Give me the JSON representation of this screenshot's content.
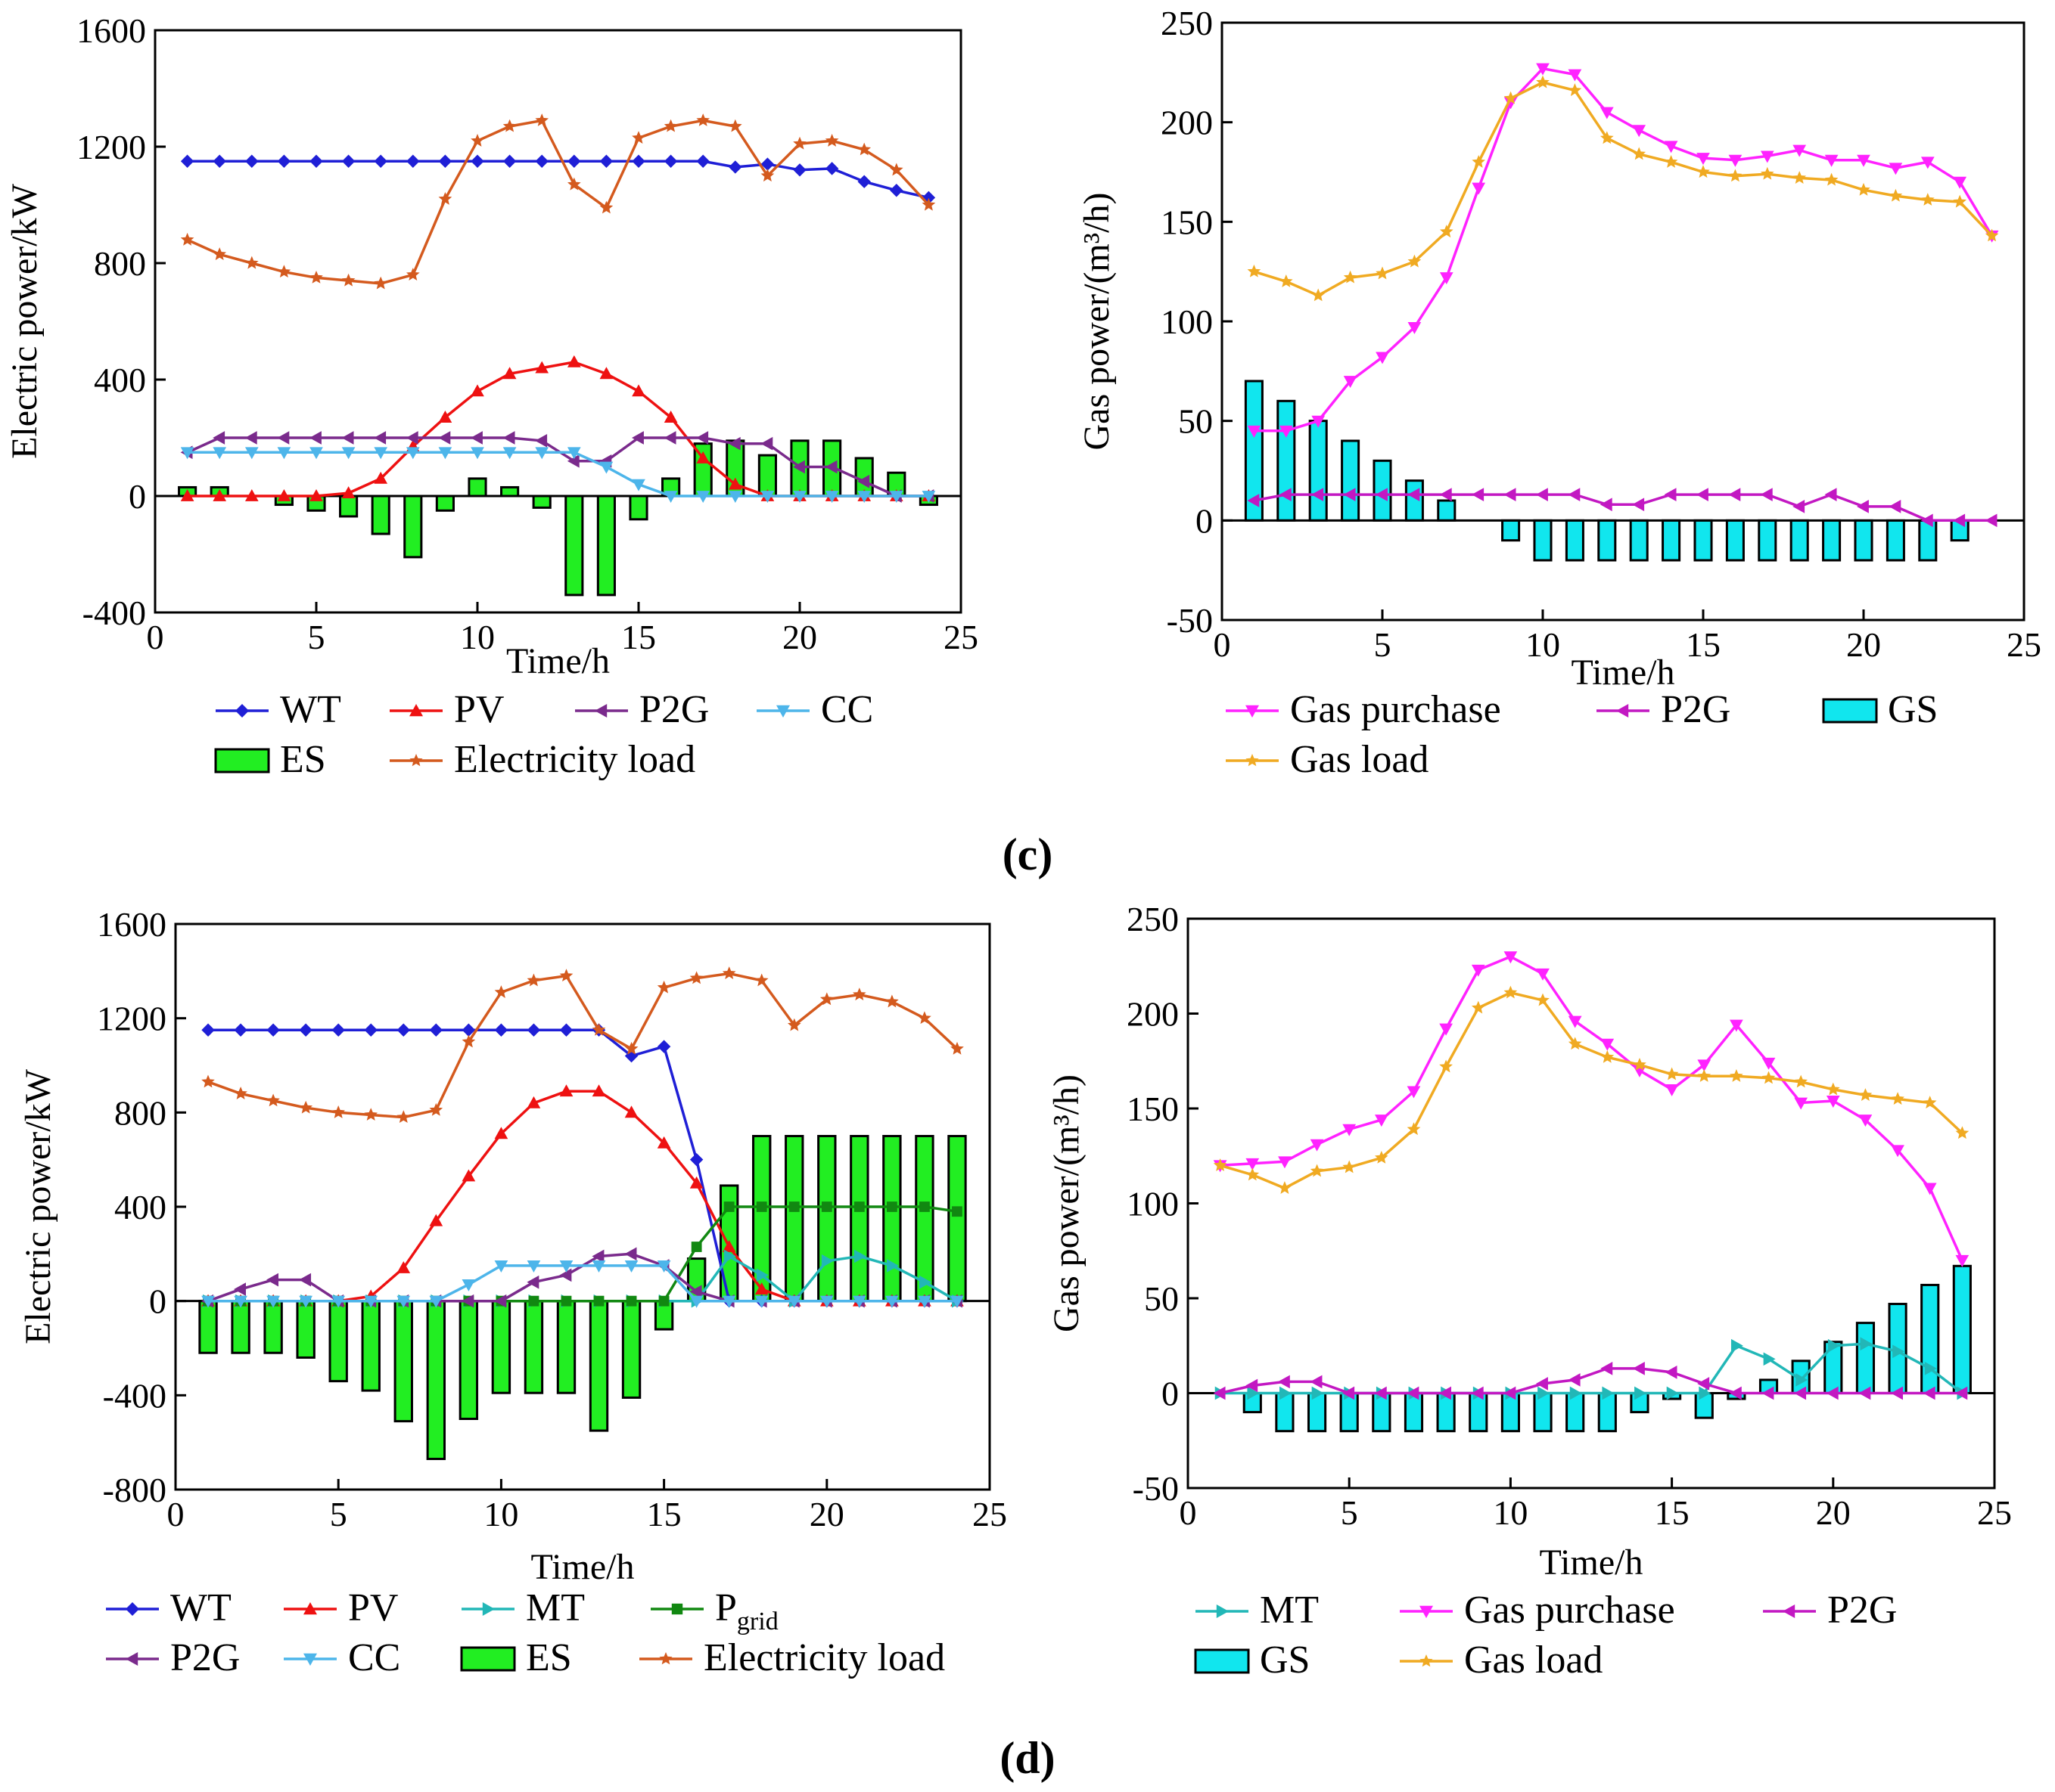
{
  "figure": {
    "panel_c_label": "(c)",
    "panel_d_label": "(d)"
  },
  "colors": {
    "WT": "#1f1fd6",
    "PV": "#ee1111",
    "P2G_elec": "#7a2a8c",
    "CC": "#4db5ea",
    "ES": "#22ee22",
    "Electricity_load": "#d45a1e",
    "Gas_purchase": "#ff22ff",
    "P2G_gas": "#c218c2",
    "GS": "#11e6ee",
    "Gas_load": "#f0aa22",
    "MT": "#22b7b7",
    "Pgrid": "#118811"
  },
  "chart_data": [
    {
      "id": "c-electric",
      "type": "line+bar",
      "xlabel": "Time/h",
      "ylabel": "Electric power/kW",
      "xlim": [
        0,
        25
      ],
      "ylim": [
        -400,
        1600
      ],
      "xticks": [
        "0",
        "5",
        "10",
        "15",
        "20",
        "25"
      ],
      "yticks": [
        "-400",
        "0",
        "400",
        "800",
        "1200",
        "1600"
      ],
      "x": [
        1,
        2,
        3,
        4,
        5,
        6,
        7,
        8,
        9,
        10,
        11,
        12,
        13,
        14,
        15,
        16,
        17,
        18,
        19,
        20,
        21,
        22,
        23,
        24
      ],
      "series": [
        {
          "name": "WT",
          "kind": "line",
          "color": "#1f1fd6",
          "marker": "diamond",
          "values": [
            1150,
            1150,
            1150,
            1150,
            1150,
            1150,
            1150,
            1150,
            1150,
            1150,
            1150,
            1150,
            1150,
            1150,
            1150,
            1150,
            1150,
            1130,
            1140,
            1120,
            1125,
            1080,
            1050,
            1025
          ]
        },
        {
          "name": "PV",
          "kind": "line",
          "color": "#ee1111",
          "marker": "triangle-up",
          "values": [
            0,
            0,
            0,
            0,
            0,
            10,
            60,
            170,
            270,
            360,
            420,
            440,
            460,
            420,
            360,
            270,
            130,
            40,
            0,
            0,
            0,
            0,
            0,
            0
          ]
        },
        {
          "name": "P2G",
          "kind": "line",
          "color": "#7a2a8c",
          "marker": "triangle-left",
          "values": [
            150,
            200,
            200,
            200,
            200,
            200,
            200,
            200,
            200,
            200,
            200,
            190,
            120,
            120,
            200,
            200,
            200,
            180,
            180,
            100,
            100,
            50,
            0,
            0
          ]
        },
        {
          "name": "CC",
          "kind": "line",
          "color": "#4db5ea",
          "marker": "triangle-down",
          "values": [
            150,
            150,
            150,
            150,
            150,
            150,
            150,
            150,
            150,
            150,
            150,
            150,
            150,
            100,
            40,
            0,
            0,
            0,
            0,
            0,
            0,
            0,
            0,
            0
          ]
        },
        {
          "name": "ES",
          "kind": "bar",
          "color": "#22ee22",
          "values": [
            30,
            30,
            0,
            -30,
            -50,
            -70,
            -130,
            -210,
            -50,
            60,
            30,
            -40,
            -340,
            -340,
            -80,
            60,
            180,
            190,
            140,
            190,
            190,
            130,
            80,
            -30
          ]
        },
        {
          "name": "Electricity load",
          "kind": "line",
          "color": "#d45a1e",
          "marker": "star",
          "values": [
            880,
            830,
            800,
            770,
            750,
            740,
            730,
            760,
            1020,
            1220,
            1270,
            1290,
            1070,
            990,
            1230,
            1270,
            1290,
            1270,
            1100,
            1210,
            1220,
            1190,
            1120,
            1000
          ]
        }
      ],
      "legend": [
        [
          "WT",
          "PV",
          "P2G",
          "CC"
        ],
        [
          "ES",
          "Electricity load"
        ]
      ]
    },
    {
      "id": "c-gas",
      "type": "line+bar",
      "xlabel": "Time/h",
      "ylabel": "Gas power/(m³/h)",
      "xlim": [
        0,
        25
      ],
      "ylim": [
        -50,
        250
      ],
      "xticks": [
        "0",
        "5",
        "10",
        "15",
        "20",
        "25"
      ],
      "yticks": [
        "-50",
        "0",
        "50",
        "100",
        "150",
        "200",
        "250"
      ],
      "x": [
        1,
        2,
        3,
        4,
        5,
        6,
        7,
        8,
        9,
        10,
        11,
        12,
        13,
        14,
        15,
        16,
        17,
        18,
        19,
        20,
        21,
        22,
        23,
        24
      ],
      "series": [
        {
          "name": "Gas purchase",
          "kind": "line",
          "color": "#ff22ff",
          "marker": "triangle-down",
          "values": [
            45,
            45,
            50,
            70,
            82,
            97,
            122,
            167,
            210,
            227,
            224,
            205,
            196,
            188,
            182,
            181,
            183,
            186,
            181,
            181,
            177,
            180,
            170,
            143
          ]
        },
        {
          "name": "P2G",
          "kind": "line",
          "color": "#c218c2",
          "marker": "triangle-left",
          "values": [
            10,
            13,
            13,
            13,
            13,
            13,
            13,
            13,
            13,
            13,
            13,
            8,
            8,
            13,
            13,
            13,
            13,
            7,
            13,
            7,
            7,
            0,
            0,
            0
          ]
        },
        {
          "name": "GS",
          "kind": "bar",
          "color": "#11e6ee",
          "values": [
            70,
            60,
            50,
            40,
            30,
            20,
            10,
            0,
            -10,
            -20,
            -20,
            -20,
            -20,
            -20,
            -20,
            -20,
            -20,
            -20,
            -20,
            -20,
            -20,
            -20,
            -10,
            0
          ]
        },
        {
          "name": "Gas load",
          "kind": "line",
          "color": "#f0aa22",
          "marker": "star",
          "values": [
            125,
            120,
            113,
            122,
            124,
            130,
            145,
            180,
            212,
            220,
            216,
            192,
            184,
            180,
            175,
            173,
            174,
            172,
            171,
            166,
            163,
            161,
            160,
            143
          ]
        }
      ],
      "legend": [
        [
          "Gas purchase",
          "P2G",
          "GS"
        ],
        [
          "Gas load"
        ]
      ]
    },
    {
      "id": "d-electric",
      "type": "line+bar",
      "xlabel": "Time/h",
      "ylabel": "Electric power/kW",
      "xlim": [
        0,
        25
      ],
      "ylim": [
        -800,
        1600
      ],
      "xticks": [
        "0",
        "5",
        "10",
        "15",
        "20",
        "25"
      ],
      "yticks": [
        "-800",
        "-400",
        "0",
        "400",
        "800",
        "1200",
        "1600"
      ],
      "x": [
        1,
        2,
        3,
        4,
        5,
        6,
        7,
        8,
        9,
        10,
        11,
        12,
        13,
        14,
        15,
        16,
        17,
        18,
        19,
        20,
        21,
        22,
        23,
        24
      ],
      "series": [
        {
          "name": "WT",
          "kind": "line",
          "color": "#1f1fd6",
          "marker": "diamond",
          "values": [
            1150,
            1150,
            1150,
            1150,
            1150,
            1150,
            1150,
            1150,
            1150,
            1150,
            1150,
            1150,
            1150,
            1040,
            1080,
            600,
            0,
            0,
            0,
            0,
            0,
            0,
            0,
            0
          ]
        },
        {
          "name": "PV",
          "kind": "line",
          "color": "#ee1111",
          "marker": "triangle-up",
          "values": [
            0,
            0,
            0,
            0,
            0,
            20,
            140,
            340,
            530,
            710,
            840,
            890,
            890,
            800,
            670,
            500,
            230,
            50,
            0,
            0,
            0,
            0,
            0,
            0
          ]
        },
        {
          "name": "MT",
          "kind": "line",
          "color": "#22b7b7",
          "marker": "triangle-right",
          "values": [
            0,
            0,
            0,
            0,
            0,
            0,
            0,
            0,
            0,
            0,
            0,
            0,
            0,
            0,
            0,
            0,
            190,
            110,
            0,
            170,
            190,
            150,
            80,
            0
          ]
        },
        {
          "name": "Pgrid",
          "kind": "line",
          "color": "#118811",
          "marker": "square",
          "values": [
            0,
            0,
            0,
            0,
            0,
            0,
            0,
            0,
            0,
            0,
            0,
            0,
            0,
            0,
            0,
            230,
            400,
            400,
            400,
            400,
            400,
            400,
            400,
            380
          ]
        },
        {
          "name": "P2G",
          "kind": "line",
          "color": "#7a2a8c",
          "marker": "triangle-left",
          "values": [
            0,
            50,
            90,
            90,
            0,
            0,
            0,
            0,
            0,
            0,
            80,
            110,
            190,
            200,
            150,
            40,
            0,
            0,
            0,
            0,
            0,
            0,
            0,
            0
          ]
        },
        {
          "name": "CC",
          "kind": "line",
          "color": "#4db5ea",
          "marker": "triangle-down",
          "values": [
            0,
            0,
            0,
            0,
            0,
            0,
            0,
            0,
            70,
            150,
            150,
            150,
            150,
            150,
            150,
            0,
            0,
            0,
            0,
            0,
            0,
            0,
            0,
            0
          ]
        },
        {
          "name": "ES",
          "kind": "bar",
          "color": "#22ee22",
          "values": [
            -220,
            -220,
            -220,
            -240,
            -340,
            -380,
            -510,
            -670,
            -500,
            -390,
            -390,
            -390,
            -550,
            -410,
            -120,
            180,
            490,
            700,
            700,
            700,
            700,
            700,
            700,
            700
          ]
        },
        {
          "name": "Electricity load",
          "kind": "line",
          "color": "#d45a1e",
          "marker": "star",
          "values": [
            930,
            880,
            850,
            820,
            800,
            790,
            780,
            810,
            1100,
            1310,
            1360,
            1380,
            1150,
            1070,
            1330,
            1370,
            1390,
            1360,
            1170,
            1280,
            1300,
            1270,
            1200,
            1070
          ]
        }
      ],
      "legend": [
        [
          "WT",
          "PV",
          "MT",
          "Pgrid"
        ],
        [
          "P2G",
          "CC",
          "ES",
          "Electricity load"
        ]
      ]
    },
    {
      "id": "d-gas",
      "type": "line+bar",
      "xlabel": "Time/h",
      "ylabel": "Gas power/(m³/h)",
      "xlim": [
        0,
        25
      ],
      "ylim": [
        -50,
        250
      ],
      "xticks": [
        "0",
        "5",
        "10",
        "15",
        "20",
        "25"
      ],
      "yticks": [
        "-50",
        "0",
        "50",
        "100",
        "150",
        "200",
        "250"
      ],
      "x": [
        1,
        2,
        3,
        4,
        5,
        6,
        7,
        8,
        9,
        10,
        11,
        12,
        13,
        14,
        15,
        16,
        17,
        18,
        19,
        20,
        21,
        22,
        23,
        24
      ],
      "series": [
        {
          "name": "MT",
          "kind": "line",
          "color": "#22b7b7",
          "marker": "triangle-right",
          "values": [
            0,
            0,
            0,
            0,
            0,
            0,
            0,
            0,
            0,
            0,
            0,
            0,
            0,
            0,
            0,
            0,
            25,
            18,
            7,
            25,
            26,
            22,
            13,
            0
          ]
        },
        {
          "name": "Gas purchase",
          "kind": "line",
          "color": "#ff22ff",
          "marker": "triangle-down",
          "values": [
            120,
            121,
            122,
            131,
            139,
            144,
            159,
            192,
            223,
            230,
            221,
            196,
            184,
            170,
            160,
            173,
            194,
            174,
            153,
            154,
            144,
            128,
            108,
            70
          ]
        },
        {
          "name": "P2G",
          "kind": "line",
          "color": "#c218c2",
          "marker": "triangle-left",
          "values": [
            0,
            4,
            6,
            6,
            0,
            0,
            0,
            0,
            0,
            0,
            5,
            7,
            13,
            13,
            11,
            5,
            0,
            0,
            0,
            0,
            0,
            0,
            0,
            0
          ]
        },
        {
          "name": "GS",
          "kind": "bar",
          "color": "#11e6ee",
          "values": [
            0,
            -10,
            -20,
            -20,
            -20,
            -20,
            -20,
            -20,
            -20,
            -20,
            -20,
            -20,
            -20,
            -10,
            -3,
            -13,
            -3,
            7,
            17,
            27,
            37,
            47,
            57,
            67
          ]
        },
        {
          "name": "Gas load",
          "kind": "line",
          "color": "#f0aa22",
          "marker": "star",
          "values": [
            120,
            115,
            108,
            117,
            119,
            124,
            139,
            172,
            203,
            211,
            207,
            184,
            177,
            173,
            168,
            167,
            167,
            166,
            164,
            160,
            157,
            155,
            153,
            137
          ]
        }
      ],
      "legend": [
        [
          "MT",
          "Gas purchase",
          "P2G"
        ],
        [
          "GS",
          "Gas load"
        ]
      ]
    }
  ]
}
